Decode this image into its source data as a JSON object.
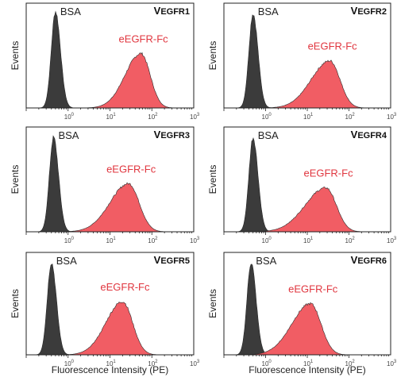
{
  "figure": {
    "xlabel": "Fluorescence Intensity (PE)",
    "ylabel": "Events"
  },
  "chart_data": [
    {
      "type": "area",
      "title": "VEGFR1",
      "xscale": "log",
      "xlim": [
        0.1,
        1000
      ],
      "x_ticks": [
        {
          "b": "10",
          "e": "0"
        },
        {
          "b": "10",
          "e": "1"
        },
        {
          "b": "10",
          "e": "2"
        },
        {
          "b": "10",
          "e": "3"
        }
      ],
      "xlabel": "",
      "ylabel": "Events",
      "series": [
        {
          "name": "BSA",
          "color": "#3b3b3b",
          "peak_x": 0.5,
          "peak_height": 0.92,
          "log_sd_left": 0.1,
          "log_sd_right": 0.12
        },
        {
          "name": "eEGFR-Fc",
          "color": "#f0545c",
          "peak_x": 55,
          "peak_height": 0.52,
          "log_sd_left": 0.38,
          "log_sd_right": 0.22
        }
      ]
    },
    {
      "type": "area",
      "title": "VEGFR2",
      "xscale": "log",
      "xlim": [
        0.1,
        1000
      ],
      "x_ticks": [
        {
          "b": "10",
          "e": "0"
        },
        {
          "b": "10",
          "e": "1"
        },
        {
          "b": "10",
          "e": "2"
        },
        {
          "b": "10",
          "e": "3"
        }
      ],
      "xlabel": "",
      "ylabel": "Events",
      "series": [
        {
          "name": "BSA",
          "color": "#3b3b3b",
          "peak_x": 0.5,
          "peak_height": 0.9,
          "log_sd_left": 0.1,
          "log_sd_right": 0.12
        },
        {
          "name": "eEGFR-Fc",
          "color": "#f0545c",
          "peak_x": 35,
          "peak_height": 0.45,
          "log_sd_left": 0.45,
          "log_sd_right": 0.24
        }
      ]
    },
    {
      "type": "area",
      "title": "VEGFR3",
      "xscale": "log",
      "xlim": [
        0.1,
        1000
      ],
      "x_ticks": [
        {
          "b": "10",
          "e": "0"
        },
        {
          "b": "10",
          "e": "1"
        },
        {
          "b": "10",
          "e": "2"
        },
        {
          "b": "10",
          "e": "3"
        }
      ],
      "xlabel": "",
      "ylabel": "Events",
      "series": [
        {
          "name": "BSA",
          "color": "#3b3b3b",
          "peak_x": 0.45,
          "peak_height": 0.9,
          "log_sd_left": 0.1,
          "log_sd_right": 0.12
        },
        {
          "name": "eEGFR-Fc",
          "color": "#f0545c",
          "peak_x": 28,
          "peak_height": 0.46,
          "log_sd_left": 0.45,
          "log_sd_right": 0.25
        }
      ]
    },
    {
      "type": "area",
      "title": "VEGFR4",
      "xscale": "log",
      "xlim": [
        0.1,
        1000
      ],
      "x_ticks": [
        {
          "b": "10",
          "e": "0"
        },
        {
          "b": "10",
          "e": "1"
        },
        {
          "b": "10",
          "e": "2"
        },
        {
          "b": "10",
          "e": "3"
        }
      ],
      "xlabel": "",
      "ylabel": "Events",
      "series": [
        {
          "name": "BSA",
          "color": "#3b3b3b",
          "peak_x": 0.5,
          "peak_height": 0.9,
          "log_sd_left": 0.1,
          "log_sd_right": 0.12
        },
        {
          "name": "eEGFR-Fc",
          "color": "#f0545c",
          "peak_x": 28,
          "peak_height": 0.42,
          "log_sd_left": 0.5,
          "log_sd_right": 0.25
        }
      ]
    },
    {
      "type": "area",
      "title": "VEGFR5",
      "xscale": "log",
      "xlim": [
        0.1,
        1000
      ],
      "x_ticks": [
        {
          "b": "10",
          "e": "0"
        },
        {
          "b": "10",
          "e": "1"
        },
        {
          "b": "10",
          "e": "2"
        },
        {
          "b": "10",
          "e": "3"
        }
      ],
      "xlabel": "",
      "ylabel": "Events",
      "series": [
        {
          "name": "BSA",
          "color": "#3b3b3b",
          "peak_x": 0.4,
          "peak_height": 0.9,
          "log_sd_left": 0.1,
          "log_sd_right": 0.12
        },
        {
          "name": "eEGFR-Fc",
          "color": "#f0545c",
          "peak_x": 20,
          "peak_height": 0.52,
          "log_sd_left": 0.4,
          "log_sd_right": 0.24
        }
      ]
    },
    {
      "type": "area",
      "title": "VEGFR6",
      "xscale": "log",
      "xlim": [
        0.1,
        1000
      ],
      "x_ticks": [
        {
          "b": "10",
          "e": "0"
        },
        {
          "b": "10",
          "e": "1"
        },
        {
          "b": "10",
          "e": "2"
        },
        {
          "b": "10",
          "e": "3"
        }
      ],
      "xlabel": "",
      "ylabel": "Events",
      "series": [
        {
          "name": "BSA",
          "color": "#3b3b3b",
          "peak_x": 0.45,
          "peak_height": 0.9,
          "log_sd_left": 0.1,
          "log_sd_right": 0.12
        },
        {
          "name": "eEGFR-Fc",
          "color": "#f0545c",
          "peak_x": 12,
          "peak_height": 0.5,
          "log_sd_left": 0.45,
          "log_sd_right": 0.25
        }
      ]
    }
  ]
}
